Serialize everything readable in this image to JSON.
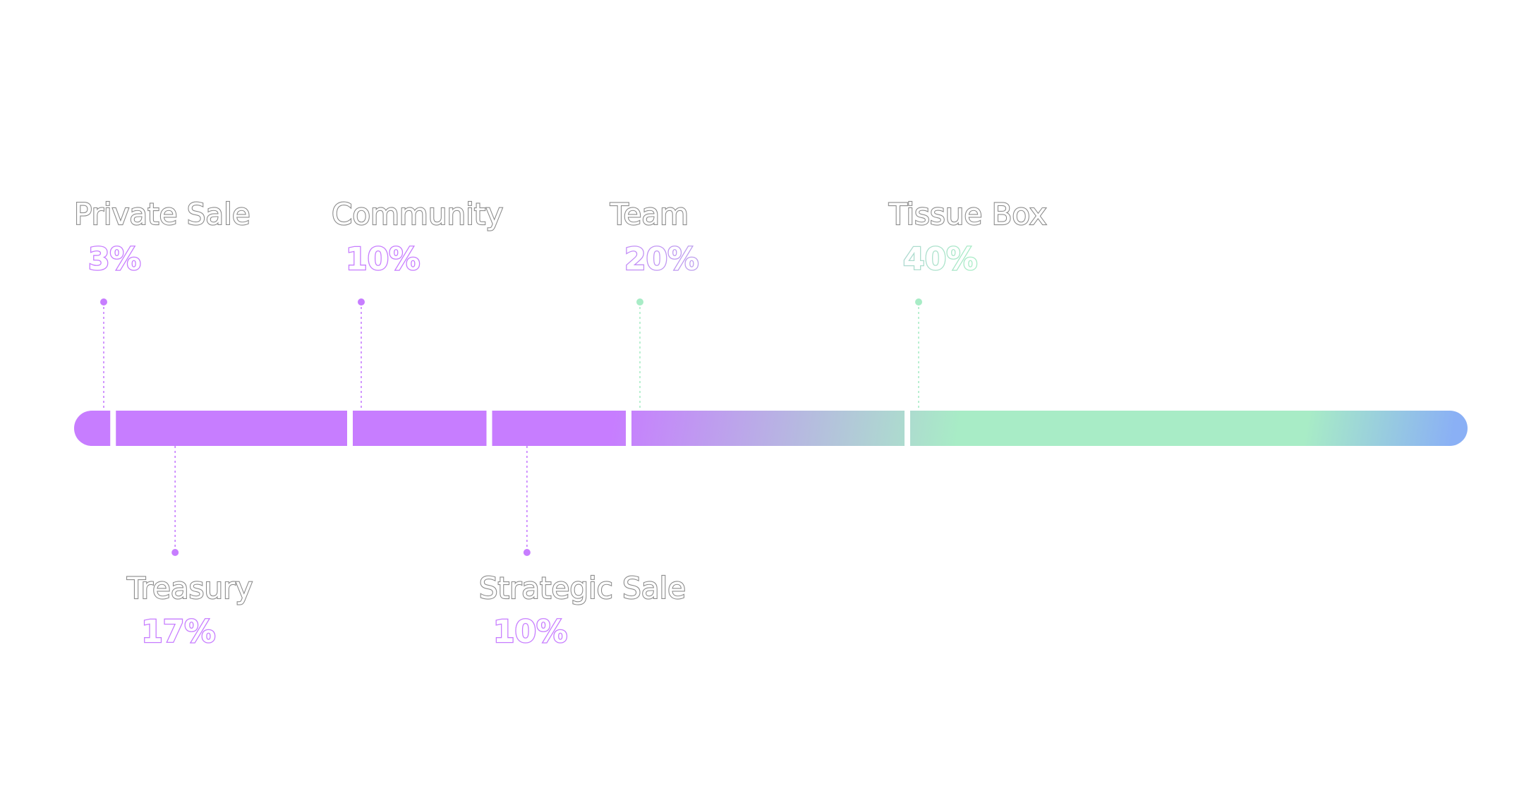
{
  "colors": {
    "purple": "#c77dff",
    "green": "#a8ecc6",
    "blue": "#8ab0f5",
    "label_outline": "#8c8c8c",
    "background": "#ffffff"
  },
  "chart_data": {
    "type": "bar",
    "orientation": "horizontal-stacked",
    "categories": [
      "Private Sale",
      "Treasury",
      "Community",
      "Strategic Sale",
      "Team",
      "Tissue Box"
    ],
    "values": [
      3,
      17,
      10,
      10,
      20,
      40
    ],
    "value_labels": [
      "3%",
      "17%",
      "10%",
      "10%",
      "20%",
      "40%"
    ],
    "label_positions": [
      "top",
      "bottom",
      "top",
      "bottom",
      "top",
      "top"
    ],
    "unit": "%",
    "total": 100,
    "grid": false,
    "legend": "none"
  }
}
